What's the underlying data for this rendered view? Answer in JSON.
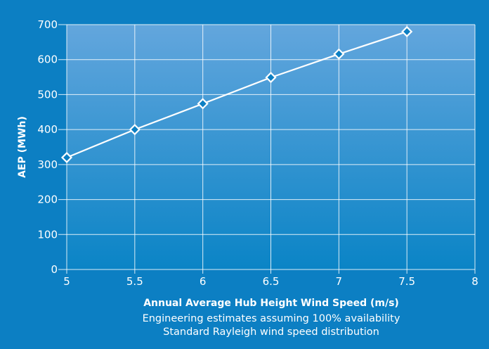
{
  "colors": {
    "background": "#0c7fc3",
    "plot_top": "#63a6dd",
    "plot_bottom": "#0a84c6",
    "foreground": "#ffffff"
  },
  "chart_data": {
    "type": "line",
    "title": "",
    "xlabel": "Annual Average Hub Height Wind Speed (m/s)",
    "ylabel": "AEP (MWh)",
    "notes": [
      "Engineering estimates assuming 100% availability",
      "Standard Rayleigh wind speed distribution"
    ],
    "xlim": [
      5,
      8
    ],
    "ylim": [
      0,
      700
    ],
    "x_ticks": [
      "5",
      "5.5",
      "6",
      "6.5",
      "7",
      "7.5",
      "8"
    ],
    "y_ticks": [
      "0",
      "100",
      "200",
      "300",
      "400",
      "500",
      "600",
      "700"
    ],
    "grid": true,
    "legend": "none",
    "series": [
      {
        "marker": "diamond",
        "x": [
          5,
          5.5,
          6,
          6.5,
          7,
          7.5
        ],
        "y": [
          320,
          400,
          474,
          549,
          616,
          680
        ]
      }
    ]
  }
}
